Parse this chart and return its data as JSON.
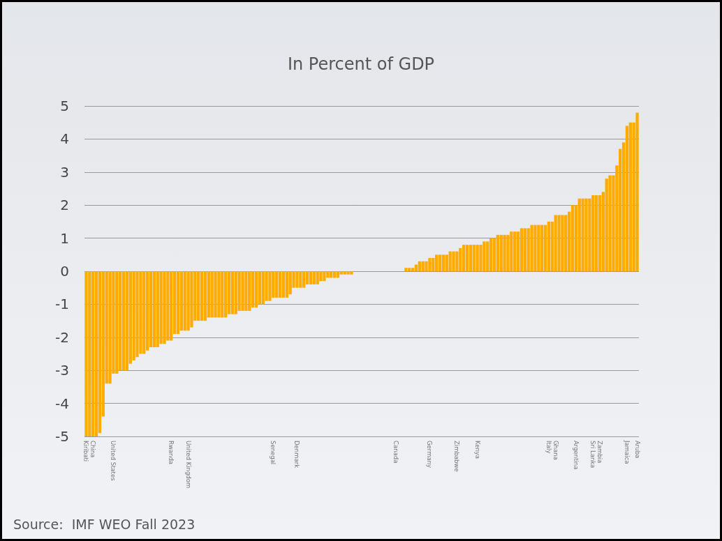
{
  "chart_data": {
    "type": "bar",
    "title": "In Percent of GDP",
    "categories": [
      "Kiribati",
      null,
      "China",
      null,
      null,
      null,
      null,
      null,
      "United States",
      null,
      null,
      null,
      null,
      null,
      null,
      null,
      null,
      null,
      null,
      null,
      null,
      null,
      null,
      null,
      null,
      "Rwanda",
      null,
      null,
      null,
      null,
      "United Kingdom",
      null,
      null,
      null,
      null,
      null,
      null,
      null,
      null,
      null,
      null,
      null,
      null,
      null,
      null,
      null,
      null,
      null,
      null,
      null,
      null,
      null,
      null,
      null,
      null,
      "Senegal",
      null,
      null,
      null,
      null,
      null,
      null,
      "Denmark",
      null,
      null,
      null,
      null,
      null,
      null,
      null,
      null,
      null,
      null,
      null,
      null,
      null,
      null,
      null,
      null,
      null,
      null,
      null,
      null,
      null,
      null,
      null,
      null,
      null,
      null,
      null,
      null,
      "Canada",
      null,
      null,
      null,
      null,
      null,
      null,
      null,
      null,
      null,
      "Germany",
      null,
      null,
      null,
      null,
      null,
      null,
      null,
      "Zimbabwe",
      null,
      null,
      null,
      null,
      null,
      "Kenya",
      null,
      null,
      null,
      null,
      null,
      null,
      null,
      null,
      null,
      null,
      null,
      null,
      null,
      null,
      null,
      null,
      null,
      null,
      null,
      null,
      "Italy",
      null,
      "Ghana",
      null,
      null,
      null,
      null,
      null,
      "Argentina",
      null,
      null,
      null,
      null,
      "Sri Lanka",
      null,
      "Zambia",
      null,
      null,
      null,
      null,
      null,
      null,
      null,
      "Jamaica",
      null,
      null,
      "Aruba"
    ],
    "values": [
      -5,
      -5,
      -5,
      -5,
      -4.9,
      -4.4,
      -3.4,
      -3.4,
      -3.1,
      -3.1,
      -3,
      -3,
      -3,
      -2.8,
      -2.7,
      -2.6,
      -2.5,
      -2.5,
      -2.4,
      -2.3,
      -2.3,
      -2.3,
      -2.2,
      -2.2,
      -2.1,
      -2.1,
      -1.9,
      -1.9,
      -1.8,
      -1.8,
      -1.8,
      -1.7,
      -1.5,
      -1.5,
      -1.5,
      -1.5,
      -1.4,
      -1.4,
      -1.4,
      -1.4,
      -1.4,
      -1.4,
      -1.3,
      -1.3,
      -1.3,
      -1.2,
      -1.2,
      -1.2,
      -1.2,
      -1.1,
      -1.1,
      -1,
      -1,
      -0.9,
      -0.9,
      -0.8,
      -0.8,
      -0.8,
      -0.8,
      -0.8,
      -0.7,
      -0.5,
      -0.5,
      -0.5,
      -0.5,
      -0.4,
      -0.4,
      -0.4,
      -0.4,
      -0.3,
      -0.3,
      -0.2,
      -0.2,
      -0.2,
      -0.2,
      -0.1,
      -0.1,
      -0.1,
      -0.1,
      0,
      0,
      0,
      0,
      0,
      0,
      0,
      0,
      0,
      0,
      0,
      0,
      0,
      0,
      0,
      0.1,
      0.1,
      0.1,
      0.2,
      0.3,
      0.3,
      0.3,
      0.4,
      0.4,
      0.5,
      0.5,
      0.5,
      0.5,
      0.6,
      0.6,
      0.6,
      0.7,
      0.8,
      0.8,
      0.8,
      0.8,
      0.8,
      0.8,
      0.9,
      0.9,
      1,
      1,
      1.1,
      1.1,
      1.1,
      1.1,
      1.2,
      1.2,
      1.2,
      1.3,
      1.3,
      1.3,
      1.4,
      1.4,
      1.4,
      1.4,
      1.4,
      1.5,
      1.5,
      1.7,
      1.7,
      1.7,
      1.7,
      1.8,
      2,
      2,
      2.2,
      2.2,
      2.2,
      2.2,
      2.3,
      2.3,
      2.3,
      2.4,
      2.8,
      2.9,
      2.9,
      3.2,
      3.7,
      3.9,
      4.4,
      4.5,
      4.5,
      4.8
    ],
    "color": "#ffab00",
    "ylim": [
      -5,
      5
    ],
    "yticks": [
      -5,
      -4,
      -3,
      -2,
      -1,
      0,
      1,
      2,
      3,
      4,
      5
    ],
    "grid": "y",
    "annotations": [
      "Source:  IMF WEO Fall 2023"
    ]
  }
}
